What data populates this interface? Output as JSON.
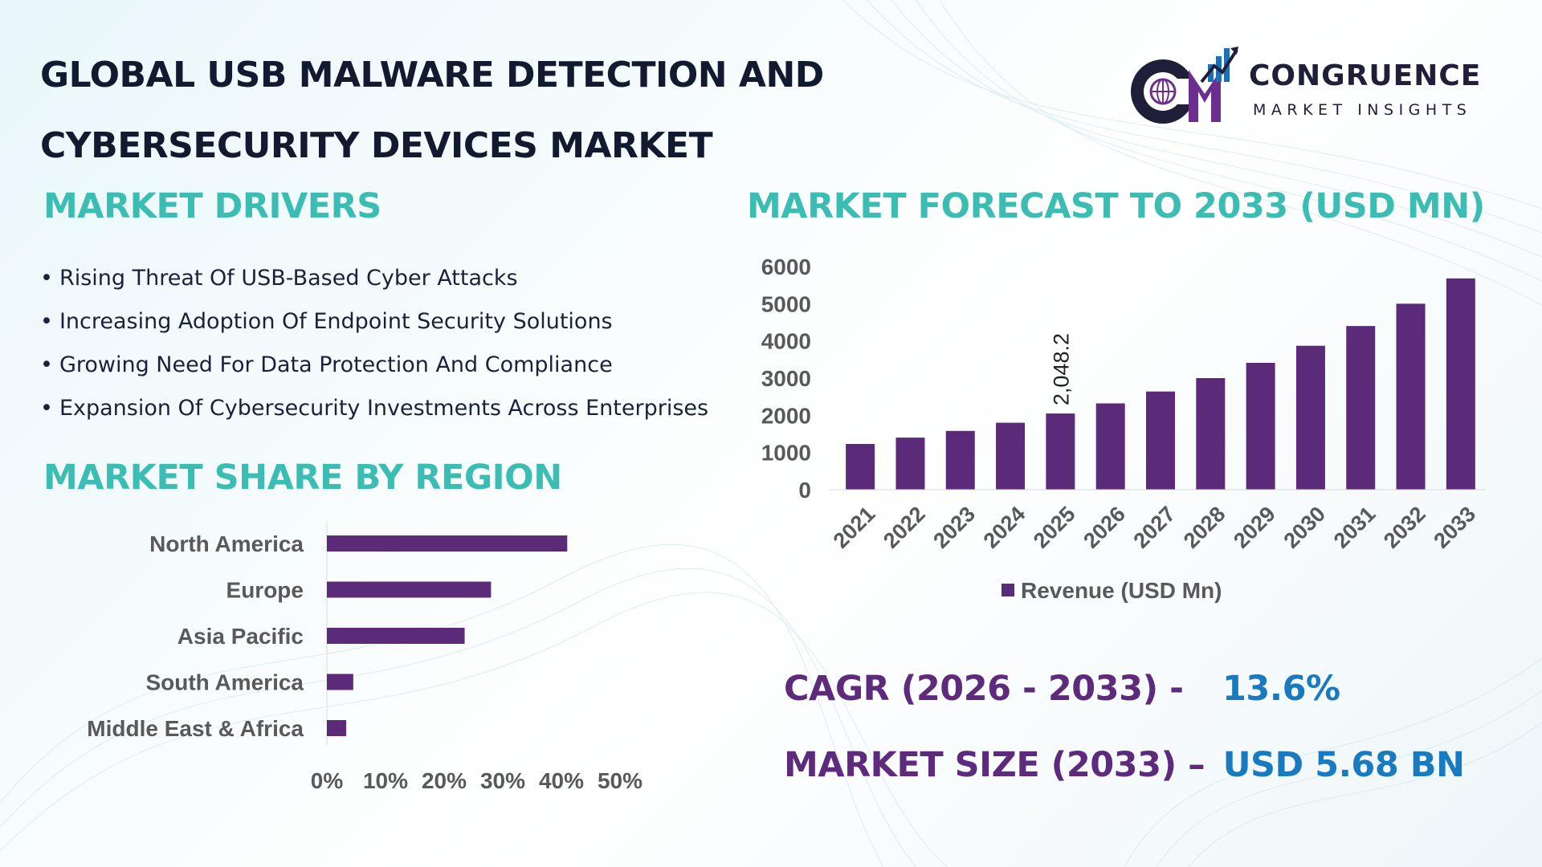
{
  "title": {
    "line1": "GLOBAL USB MALWARE DETECTION AND",
    "line2": "CYBERSECURITY DEVICES MARKET"
  },
  "brand": {
    "name": "CONGRUENCE",
    "tagline": "MARKET INSIGHTS",
    "logo_letters": "CM",
    "colors": {
      "dark": "#1f1f3a",
      "purple": "#6d2f8e",
      "blue": "#1f6fb6"
    }
  },
  "drivers": {
    "heading": "MARKET DRIVERS",
    "bullet": "•",
    "items": [
      "Rising Threat Of USB-Based Cyber Attacks",
      "Increasing Adoption Of Endpoint Security Solutions",
      "Growing Need For Data Protection And Compliance",
      "Expansion Of Cybersecurity Investments Across Enterprises"
    ]
  },
  "region": {
    "heading": "MARKET SHARE BY REGION"
  },
  "forecast": {
    "heading": "MARKET FORECAST TO 2033 (USD MN)"
  },
  "kpis": {
    "cagr_label": "CAGR (2026 - 2033) -",
    "cagr_value": "13.6%",
    "size_label": "MARKET SIZE (2033) –",
    "size_value": "USD 5.68 BN"
  },
  "colors": {
    "heading_teal": "#3bbdb3",
    "bar_purple": "#5b2a79",
    "axis_text": "#595959",
    "kpi_label": "#5e2b7c",
    "kpi_value": "#1a7abf"
  },
  "chart_data": [
    {
      "type": "bar",
      "orientation": "vertical",
      "categories": [
        "2021",
        "2022",
        "2023",
        "2024",
        "2025",
        "2026",
        "2027",
        "2028",
        "2029",
        "2030",
        "2031",
        "2032",
        "2033"
      ],
      "series": [
        {
          "name": "Revenue (USD Mn)",
          "values": [
            1230,
            1400,
            1580,
            1800,
            2048.2,
            2320,
            2640,
            3000,
            3410,
            3870,
            4400,
            5000,
            5680
          ]
        }
      ],
      "data_labels": [
        {
          "category": "2025",
          "text": "2,048.2"
        }
      ],
      "ylim": [
        0,
        6000
      ],
      "yticks": [
        0,
        1000,
        2000,
        3000,
        4000,
        5000,
        6000
      ],
      "legend": "bottom",
      "grid": false
    },
    {
      "type": "bar",
      "orientation": "horizontal",
      "categories": [
        "North America",
        "Europe",
        "Asia Pacific",
        "South America",
        "Middle East & Africa"
      ],
      "values": [
        41,
        28,
        23.5,
        4.5,
        3.3
      ],
      "xlim": [
        0,
        50
      ],
      "xticks": [
        "0%",
        "10%",
        "20%",
        "30%",
        "40%",
        "50%"
      ],
      "grid": false
    }
  ]
}
